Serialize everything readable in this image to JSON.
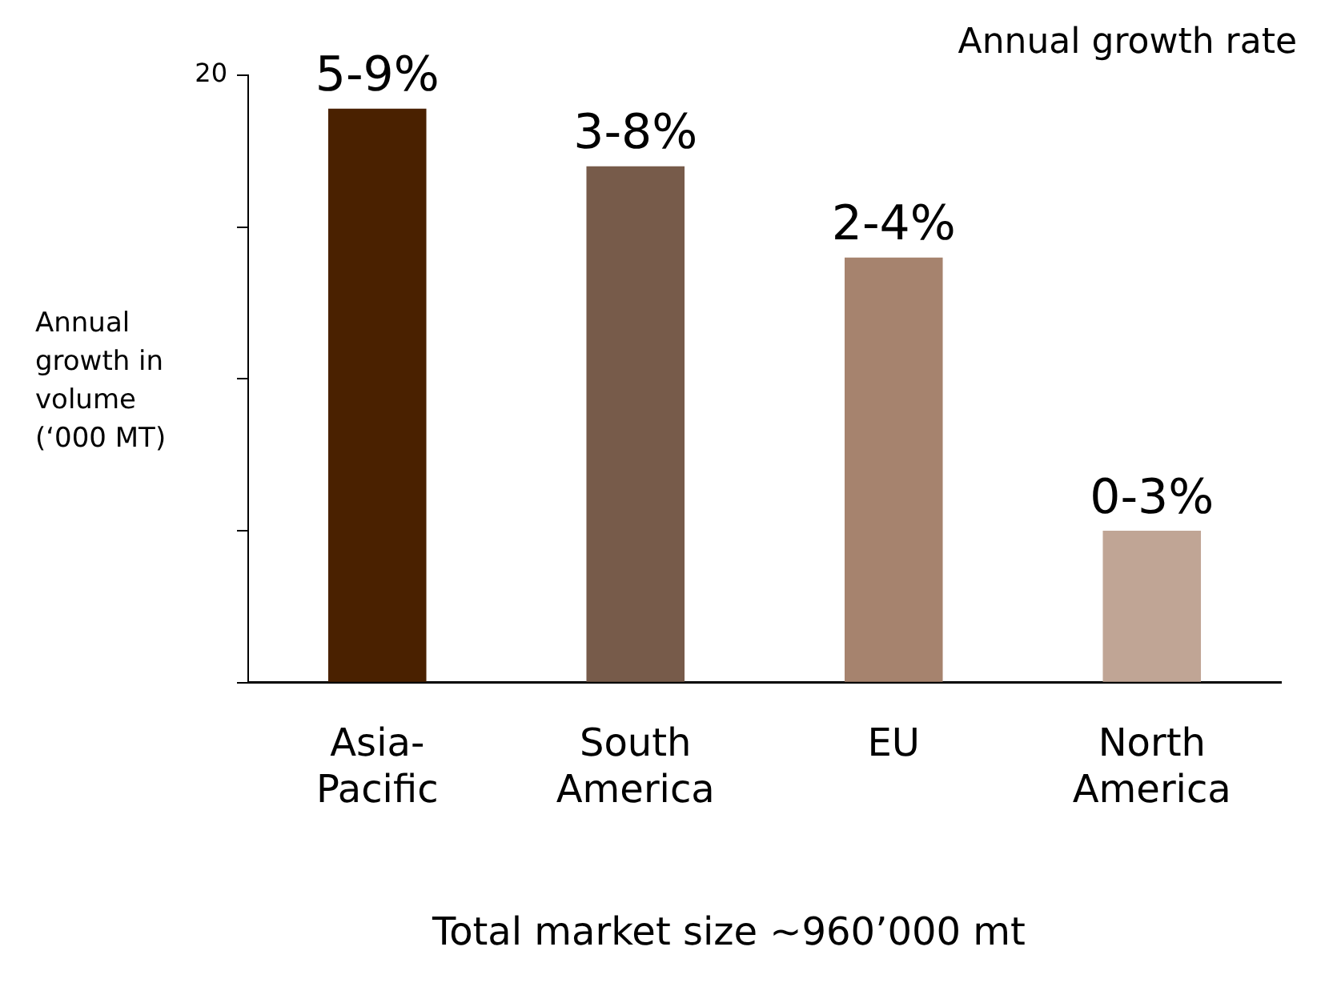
{
  "chart_data": {
    "type": "bar",
    "ylabel": "Annual growth in volume (‘000 MT)",
    "categories": [
      "Asia-Pacific",
      "South America",
      "EU",
      "North America"
    ],
    "values": [
      18.9,
      17.0,
      14.0,
      5.0
    ],
    "colors": [
      "#4a2100",
      "#775b4a",
      "#a6836e",
      "#c0a595"
    ],
    "ylim": [
      0,
      20
    ],
    "yticks": [
      {
        "value": 0,
        "label": null
      },
      {
        "value": 5,
        "label": null
      },
      {
        "value": 10,
        "label": null
      },
      {
        "value": 15,
        "label": null
      },
      20
    ],
    "grid": false,
    "legend": false,
    "annotations": [
      "Annual growth rate",
      "Total market size ~960’000 mt",
      {
        "text": "5-9%",
        "x": "Asia-Pacific",
        "y": 18.9
      },
      {
        "text": "3-8%",
        "x": "South America",
        "y": 17.0
      },
      {
        "text": "2-4%",
        "x": "EU",
        "y": 14.0
      },
      {
        "text": "0-3%",
        "x": "North America",
        "y": 5.0
      }
    ]
  }
}
